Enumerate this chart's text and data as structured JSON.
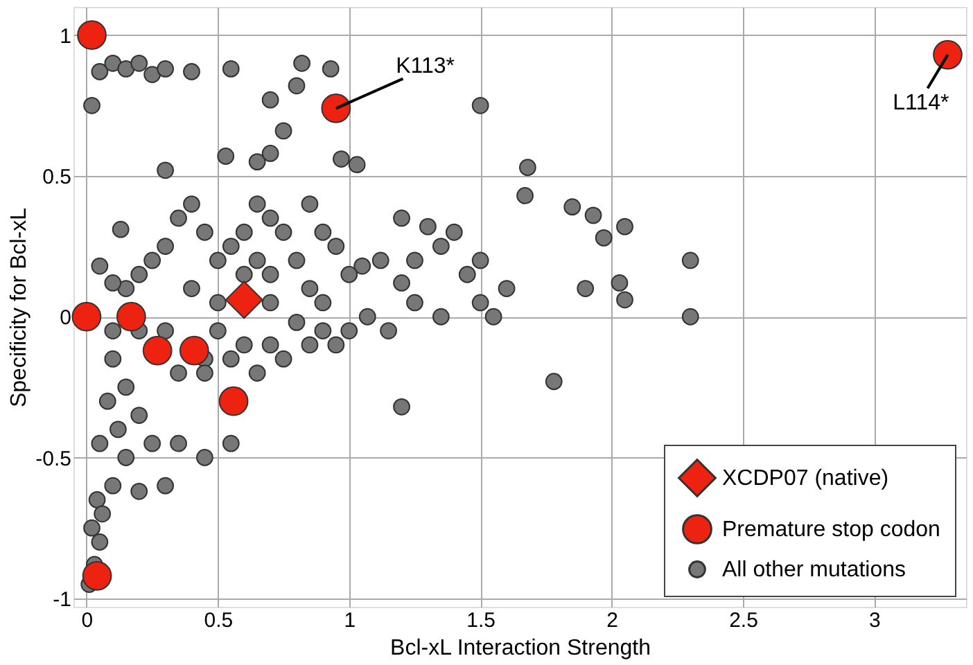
{
  "chart_data": {
    "type": "scatter",
    "xlabel": "Bcl-xL Interaction Strength",
    "ylabel": "Specificity for Bcl-xL",
    "xlim": [
      -0.05,
      3.35
    ],
    "ylim": [
      -1.03,
      1.1
    ],
    "xticks": [
      0,
      0.5,
      1,
      1.5,
      2,
      2.5,
      3
    ],
    "yticks": [
      -1,
      -0.5,
      0,
      0.5,
      1
    ],
    "grid": true,
    "legend": "bottom right",
    "annotations": [
      {
        "text": "K113*",
        "x": 0.95,
        "y": 0.74
      },
      {
        "text": "L114*",
        "x": 3.28,
        "y": 0.93
      }
    ],
    "series": [
      {
        "name": "XCDP07 (native)",
        "color": "#ee2211",
        "marker": "diamond",
        "x": [
          0.6
        ],
        "values": [
          0.06
        ]
      },
      {
        "name": "Premature stop codon",
        "color": "#ee2211",
        "marker": "circle",
        "x": [
          0.02,
          0.95,
          3.28,
          0.0,
          0.17,
          0.27,
          0.41,
          0.56,
          0.04
        ],
        "values": [
          1.0,
          0.74,
          0.93,
          0.0,
          0.0,
          -0.12,
          -0.12,
          -0.3,
          -0.92
        ]
      },
      {
        "name": "All other mutations",
        "color": "#777777",
        "marker": "circle",
        "x": [
          0.05,
          0.1,
          0.15,
          0.2,
          0.25,
          0.3,
          0.4,
          0.55,
          0.82,
          0.93,
          0.8,
          0.7,
          0.02,
          0.75,
          1.5,
          0.97,
          1.03,
          0.65,
          0.7,
          0.53,
          0.3,
          0.13,
          1.68,
          1.67,
          1.85,
          1.97,
          1.93,
          2.05,
          2.3,
          2.03,
          2.05,
          2.3,
          1.9,
          1.78,
          1.5,
          1.45,
          1.5,
          1.4,
          1.35,
          1.3,
          1.25,
          1.2,
          1.12,
          1.05,
          1.0,
          1.15,
          1.2,
          1.07,
          1.25,
          1.35,
          0.9,
          0.85,
          0.8,
          0.75,
          0.7,
          0.9,
          0.95,
          0.85,
          0.65,
          0.6,
          0.55,
          0.5,
          0.45,
          0.4,
          0.35,
          0.3,
          0.25,
          0.2,
          0.15,
          0.1,
          0.05,
          0.4,
          0.5,
          0.7,
          0.8,
          0.7,
          0.75,
          0.85,
          0.9,
          0.95,
          1.0,
          0.65,
          0.6,
          0.5,
          0.45,
          0.35,
          0.3,
          0.2,
          0.1,
          0.1,
          0.15,
          0.08,
          0.12,
          0.2,
          0.25,
          0.15,
          0.05,
          0.1,
          0.2,
          0.3,
          0.35,
          0.45,
          0.55,
          0.04,
          0.02,
          0.05,
          0.03,
          0.01,
          0.06,
          0.45,
          0.55,
          0.6,
          0.65,
          0.7,
          1.6,
          1.55,
          1.2
        ],
        "values": [
          0.87,
          0.9,
          0.88,
          0.9,
          0.86,
          0.88,
          0.87,
          0.88,
          0.9,
          0.88,
          0.82,
          0.77,
          0.75,
          0.66,
          0.75,
          0.56,
          0.54,
          0.55,
          0.58,
          0.57,
          0.52,
          0.31,
          0.53,
          0.43,
          0.39,
          0.28,
          0.36,
          0.32,
          0.2,
          0.12,
          0.06,
          0.0,
          0.1,
          -0.23,
          0.2,
          0.15,
          0.05,
          0.3,
          0.25,
          0.32,
          0.2,
          0.12,
          0.2,
          0.18,
          0.15,
          -0.05,
          -0.32,
          0.0,
          0.05,
          0.0,
          0.05,
          0.1,
          0.2,
          0.3,
          0.35,
          0.3,
          0.25,
          0.4,
          0.4,
          0.3,
          0.25,
          0.2,
          0.3,
          0.4,
          0.35,
          0.25,
          0.2,
          0.15,
          0.1,
          0.12,
          0.18,
          0.1,
          0.05,
          0.05,
          -0.02,
          -0.1,
          -0.15,
          -0.1,
          -0.05,
          -0.1,
          -0.05,
          -0.2,
          -0.1,
          -0.05,
          -0.15,
          -0.2,
          -0.05,
          -0.05,
          -0.05,
          -0.15,
          -0.25,
          -0.3,
          -0.4,
          -0.35,
          -0.45,
          -0.5,
          -0.45,
          -0.6,
          -0.62,
          -0.6,
          -0.45,
          -0.5,
          -0.45,
          -0.65,
          -0.75,
          -0.8,
          -0.88,
          -0.95,
          -0.7,
          -0.2,
          -0.15,
          0.15,
          0.2,
          0.15,
          0.1,
          0.0,
          0.35
        ]
      }
    ]
  }
}
